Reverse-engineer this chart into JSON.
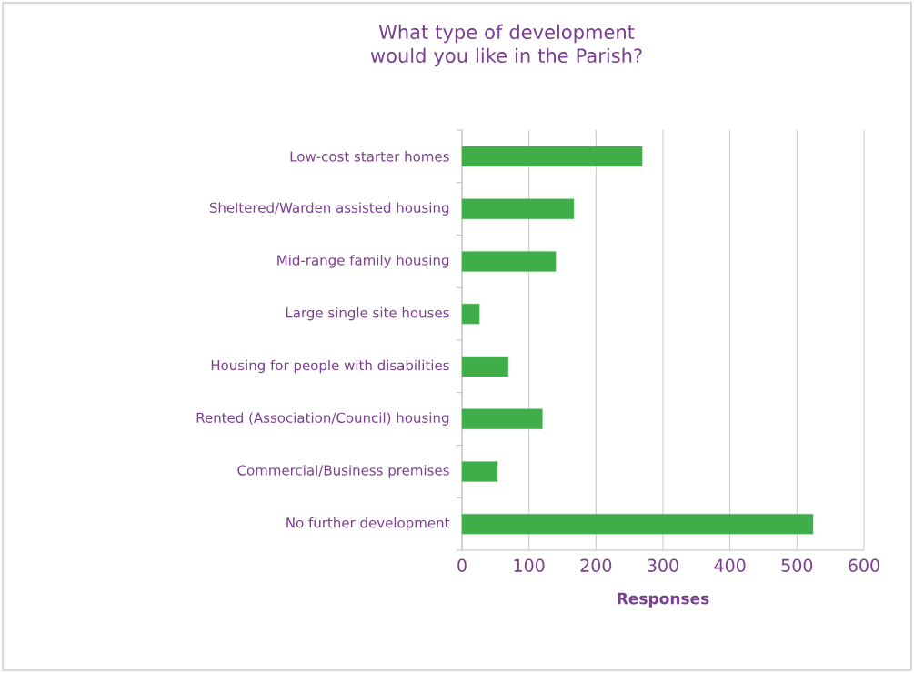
{
  "chart_data": {
    "type": "bar",
    "orientation": "horizontal",
    "title": "What type of development would you like in the Parish?",
    "xlabel": "Responses",
    "categories": [
      "Low-cost starter homes",
      "Sheltered/Warden assisted housing",
      "Mid-range family housing",
      "Large single site houses",
      "Housing for people with disabilities",
      "Rented (Association/Council) housing",
      "Commercial/Business premises",
      "No further development"
    ],
    "values": [
      269,
      167,
      140,
      26,
      69,
      120,
      53,
      524
    ],
    "color": "#3fae49",
    "xlim": [
      0,
      600
    ],
    "xticks": [
      0,
      100,
      200,
      300,
      400,
      500,
      600
    ],
    "grid": "x"
  }
}
